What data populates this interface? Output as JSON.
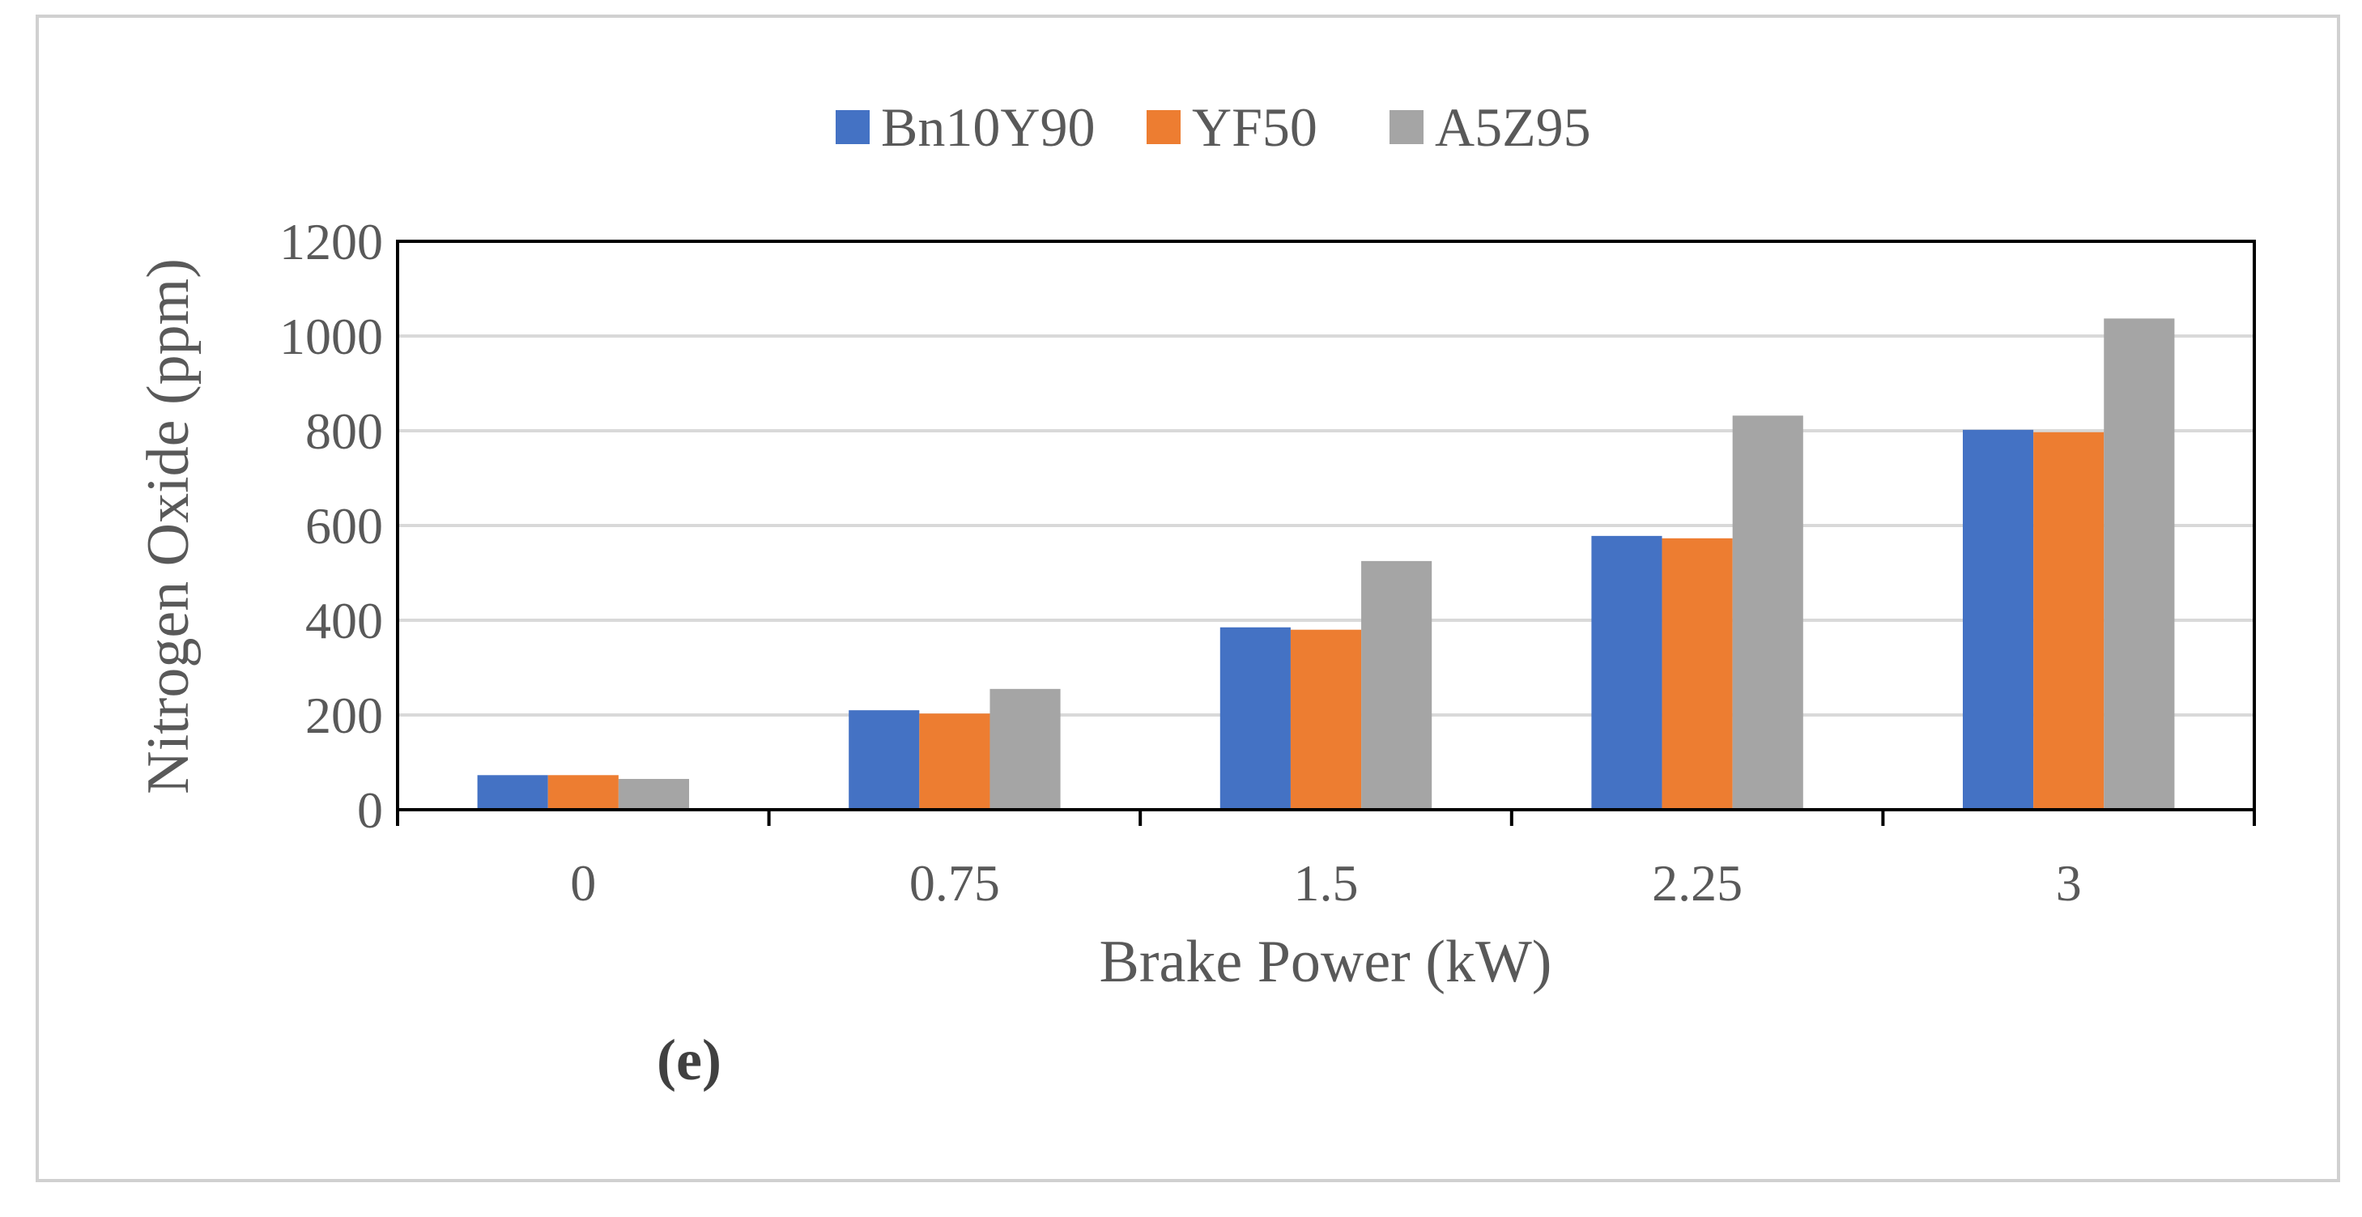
{
  "chart_data": {
    "type": "bar",
    "title": "",
    "xlabel": "Brake Power (kW)",
    "ylabel": "Nitrogen Oxide (ppm)",
    "categories": [
      "0",
      "0.75",
      "1.5",
      "2.25",
      "3"
    ],
    "series": [
      {
        "name": "Bn10Y90",
        "color": "#4472c4",
        "values": [
          73,
          210,
          385,
          578,
          802
        ]
      },
      {
        "name": "YF50",
        "color": "#ed7d31",
        "values": [
          73,
          203,
          380,
          573,
          797
        ]
      },
      {
        "name": "A5Z95",
        "color": "#a5a5a5",
        "values": [
          65,
          255,
          525,
          832,
          1037
        ]
      }
    ],
    "ylim": [
      0,
      1200
    ],
    "yticks": [
      0,
      200,
      400,
      600,
      800,
      1000,
      1200
    ],
    "grid": true,
    "legend_position": "top-center",
    "panel_label": "(e)"
  }
}
